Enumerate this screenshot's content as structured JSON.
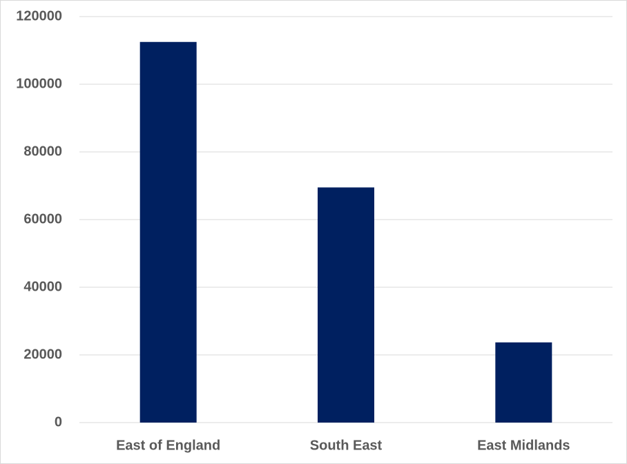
{
  "chart_data": {
    "type": "bar",
    "categories": [
      "East of England",
      "South East",
      "East Midlands"
    ],
    "values": [
      112500,
      69500,
      23700
    ],
    "color": "#002060",
    "ylim": [
      0,
      120000
    ],
    "yticks": [
      0,
      20000,
      40000,
      60000,
      80000,
      100000,
      120000
    ],
    "grid": true
  }
}
